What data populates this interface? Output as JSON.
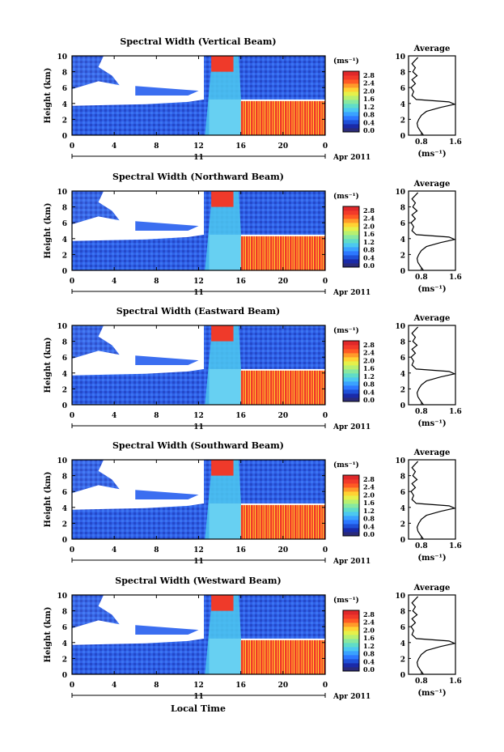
{
  "x_axis": {
    "ticks": [
      "0",
      "4",
      "8",
      "12",
      "16",
      "20",
      "0"
    ],
    "day_label": "11",
    "month_label": "Apr 2011",
    "title": "Local Time"
  },
  "y_axis": {
    "label": "Height (km)",
    "ticks": [
      "0",
      "2",
      "4",
      "6",
      "8",
      "10"
    ]
  },
  "colorbar": {
    "unit": "(ms⁻¹)",
    "ticks": [
      "2.8",
      "2.4",
      "2.0",
      "1.6",
      "1.2",
      "0.8",
      "0.4",
      "0.0"
    ],
    "colors": [
      "#2a2a7a",
      "#1a2aa8",
      "#1f50d8",
      "#2d78ff",
      "#3aa2ff",
      "#4cc8f0",
      "#60dcc8",
      "#88e8a0",
      "#b8f070",
      "#e6f04a",
      "#ffd233",
      "#ff9a2a",
      "#ff5a24",
      "#f23a2a",
      "#e0282a"
    ]
  },
  "profile": {
    "title": "Average",
    "xticks": [
      "0.8",
      "1.6"
    ],
    "xlabel": "(ms⁻¹)",
    "yticks": [
      "0",
      "2",
      "4",
      "6",
      "8",
      "10"
    ]
  },
  "chart_data": [
    {
      "type": "heatmap",
      "title": "Spectral Width (Vertical Beam)",
      "xlabel": "Local Time",
      "ylabel": "Height (km)",
      "xlim": [
        0,
        24
      ],
      "ylim": [
        0,
        10
      ],
      "colorbar_range": [
        0,
        3
      ]
    },
    {
      "type": "heatmap",
      "title": "Spectral Width (Northward Beam)",
      "xlabel": "Local Time",
      "ylabel": "Height (km)",
      "xlim": [
        0,
        24
      ],
      "ylim": [
        0,
        10
      ],
      "colorbar_range": [
        0,
        3
      ]
    },
    {
      "type": "heatmap",
      "title": "Spectral Width (Eastward Beam)",
      "xlabel": "Local Time",
      "ylabel": "Height (km)",
      "xlim": [
        0,
        24
      ],
      "ylim": [
        0,
        10
      ],
      "colorbar_range": [
        0,
        3
      ]
    },
    {
      "type": "heatmap",
      "title": "Spectral Width (Southward Beam)",
      "xlabel": "Local Time",
      "ylabel": "Height (km)",
      "xlim": [
        0,
        24
      ],
      "ylim": [
        0,
        10
      ],
      "colorbar_range": [
        0,
        3
      ]
    },
    {
      "type": "heatmap",
      "title": "Spectral Width (Westward Beam)",
      "xlabel": "Local Time",
      "ylabel": "Height (km)",
      "xlim": [
        0,
        24
      ],
      "ylim": [
        0,
        10
      ],
      "colorbar_range": [
        0,
        3
      ]
    },
    {
      "type": "line",
      "title": "Average",
      "xlabel": "(ms⁻¹)",
      "xlim": [
        0.5,
        1.6
      ],
      "ylim": [
        0,
        10
      ],
      "x": [
        0.85,
        0.78,
        0.72,
        0.7,
        0.74,
        0.8,
        0.92,
        1.25,
        1.58,
        1.45,
        0.68,
        0.58,
        0.62,
        0.56,
        0.66,
        0.58,
        0.7,
        0.6,
        0.66,
        0.58,
        0.72
      ],
      "y": [
        0,
        0.5,
        1,
        1.5,
        2,
        2.5,
        3,
        3.5,
        3.9,
        4.2,
        4.5,
        5,
        5.5,
        6,
        6.5,
        7,
        7.5,
        8,
        8.5,
        9,
        9.8
      ]
    }
  ]
}
